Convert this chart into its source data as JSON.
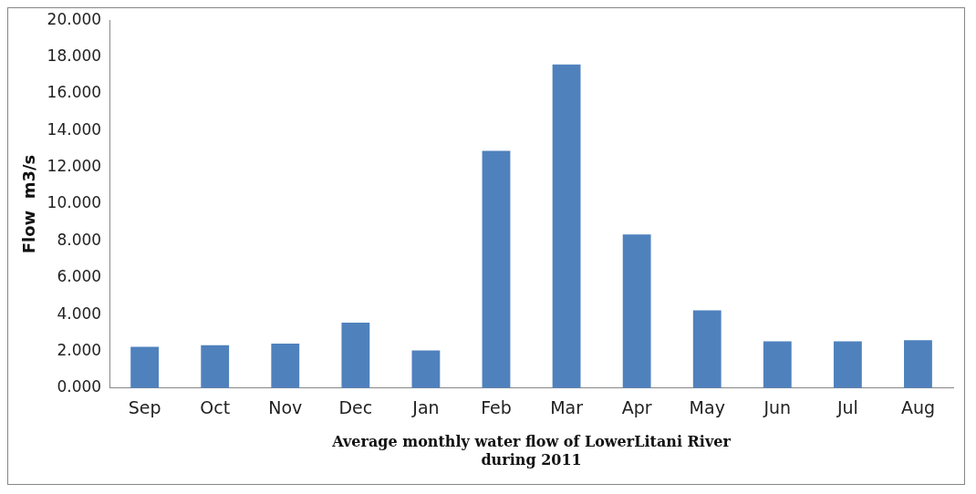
{
  "chart_data": {
    "type": "bar",
    "xlabel": "Average monthly water flow of LowerLitani River\nduring 2011",
    "ylabel": "Flow  m3/s",
    "categories": [
      "Sep",
      "Oct",
      "Nov",
      "Dec",
      "Jan",
      "Feb",
      "Mar",
      "Apr",
      "May",
      "Jun",
      "Jul",
      "Aug"
    ],
    "values": [
      2.24,
      2.33,
      2.42,
      3.56,
      2.05,
      12.9,
      17.6,
      8.35,
      4.23,
      2.54,
      2.54,
      2.61
    ],
    "color": "#4f81bd",
    "ylim": [
      0,
      20
    ],
    "yticks": [
      {
        "value": 0,
        "label": "0.000"
      },
      {
        "value": 2,
        "label": "2.000"
      },
      {
        "value": 4,
        "label": "4.000"
      },
      {
        "value": 6,
        "label": "6.000"
      },
      {
        "value": 8,
        "label": "8.000"
      },
      {
        "value": 10,
        "label": "10.000"
      },
      {
        "value": 12,
        "label": "12.000"
      },
      {
        "value": 14,
        "label": "14.000"
      },
      {
        "value": 16,
        "label": "16.000"
      },
      {
        "value": 18,
        "label": "18.000"
      },
      {
        "value": 20,
        "label": "20.000"
      }
    ],
    "grid": false,
    "legend": false
  }
}
